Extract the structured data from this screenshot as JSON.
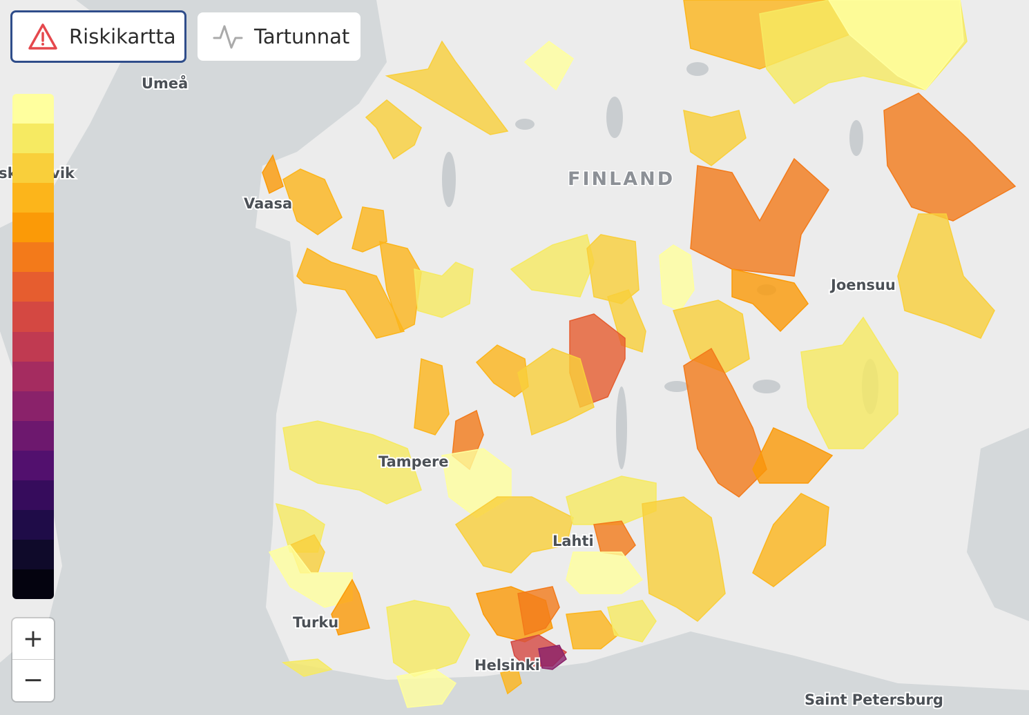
{
  "toolbar": {
    "buttons": [
      {
        "label": "Riskikartta",
        "active": true
      },
      {
        "label": "Tartunnat",
        "active": false
      }
    ]
  },
  "map": {
    "country": "FINLAND",
    "cities": [
      "Umeå",
      "Örnsköldsvik",
      "Vaasa",
      "Joensuu",
      "Tampere",
      "Lahti",
      "Turku",
      "Helsinki",
      "Saint Petersburg"
    ]
  },
  "legend": {
    "colors": [
      "#ffff9e",
      "#f6ea62",
      "#f9cf3b",
      "#fcb51b",
      "#fb9a07",
      "#f37a1a",
      "#e65d2f",
      "#d44842",
      "#c03a51",
      "#a52c60",
      "#8a226a",
      "#6d186e",
      "#52106e",
      "#360c5c",
      "#1f0c48",
      "#0f0a2a",
      "#04030f"
    ]
  },
  "zoom": {
    "in": "+",
    "out": "−"
  }
}
